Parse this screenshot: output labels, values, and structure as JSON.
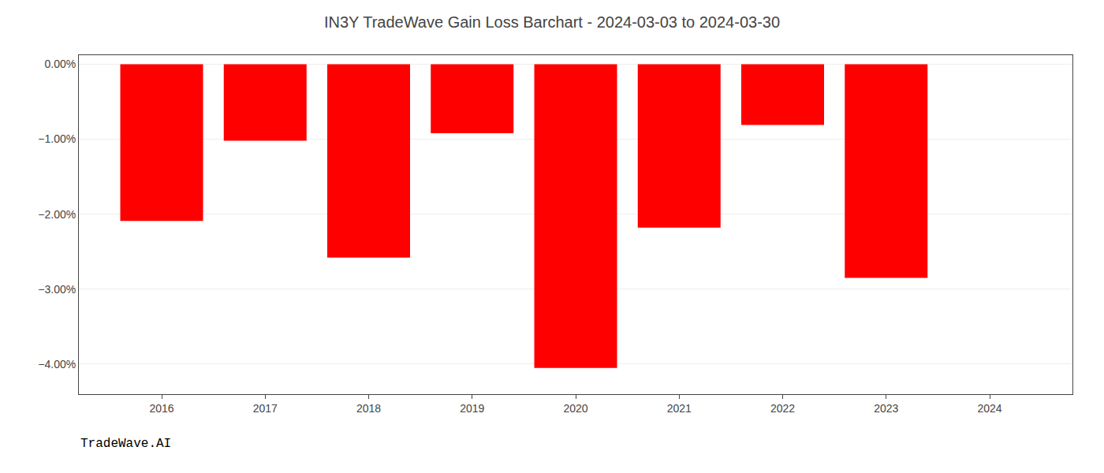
{
  "chart_data": {
    "type": "bar",
    "title": "IN3Y TradeWave Gain Loss Barchart - 2024-03-03 to 2024-03-30",
    "annotations": [
      "TradeWave.AI"
    ],
    "x": [
      2016,
      2017,
      2018,
      2019,
      2020,
      2021,
      2022,
      2023,
      2024
    ],
    "values": [
      -2.09,
      -1.02,
      -2.58,
      -0.92,
      -4.05,
      -2.18,
      -0.81,
      -2.85,
      null
    ],
    "color": "#ff0000",
    "xlim": [
      2015.2,
      2024.8
    ],
    "xticks": [
      2016,
      2017,
      2018,
      2019,
      2020,
      2021,
      2022,
      2023,
      2024
    ],
    "ylim": [
      -4.4,
      0.12
    ],
    "yticks": [
      {
        "value": 0.0,
        "label": "0.00%"
      },
      {
        "value": -1.0,
        "label": "−1.00%"
      },
      {
        "value": -2.0,
        "label": "−2.00%"
      },
      {
        "value": -3.0,
        "label": "−3.00%"
      },
      {
        "value": -4.0,
        "label": "−4.00%"
      }
    ],
    "grid": true
  }
}
